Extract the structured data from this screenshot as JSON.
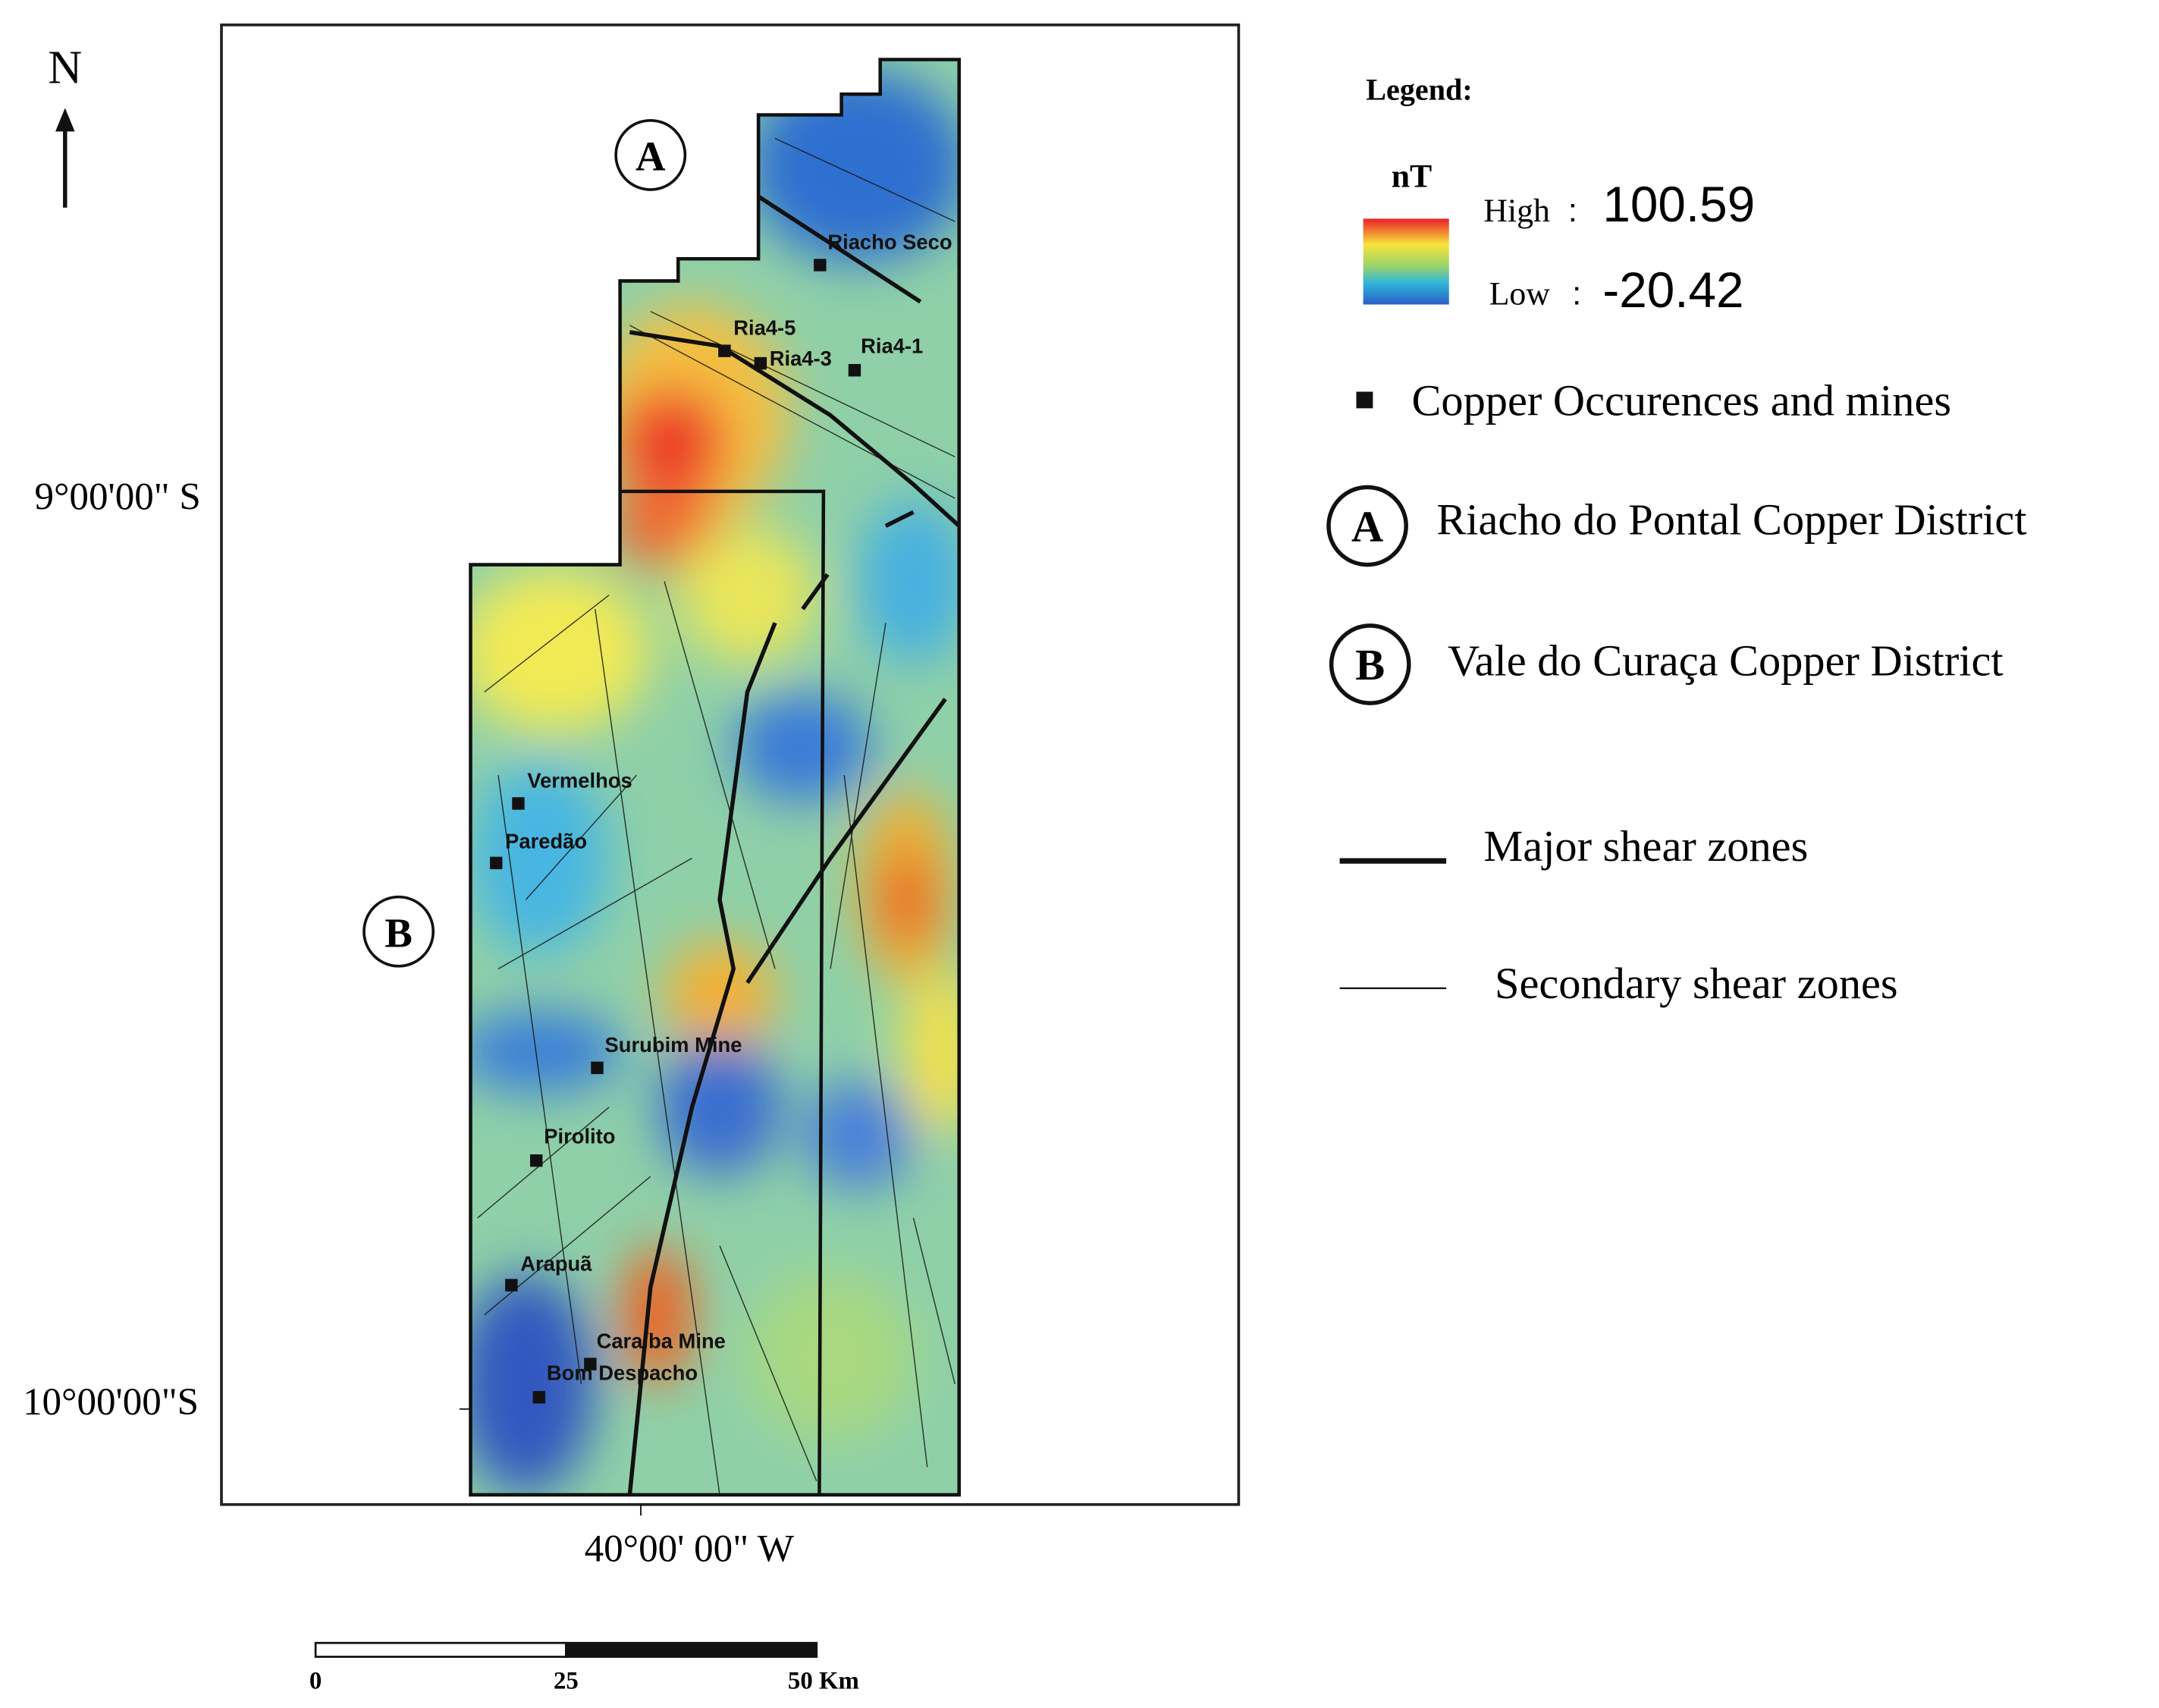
{
  "north": "N",
  "latitudes": [
    "9°00'00\" S",
    "10°00'00\"S"
  ],
  "longitude": "40°00' 00\" W",
  "map_labels": [
    "A",
    "B"
  ],
  "mines": [
    "Riacho Seco",
    "Ria4-5",
    "Ria4-3",
    "Ria4-1",
    "Vermelhos",
    "Paredão",
    "Surubim Mine",
    "Pirolito",
    "Arapuã",
    "Caraíba Mine",
    "Bom Despacho"
  ],
  "legend": {
    "title": "Legend:",
    "unit": "nT",
    "high_label": "High",
    "high_value": 100.59,
    "low_label": "Low",
    "low_value": -20.42,
    "items": [
      {
        "symbol": "",
        "label": "Copper Occurences  and mines"
      },
      {
        "symbol": "A",
        "label": "Riacho do Pontal Copper District"
      },
      {
        "symbol": "B",
        "label": "Vale do Curaça Copper  District"
      },
      {
        "symbol": "",
        "label": "Major shear zones"
      },
      {
        "symbol": "",
        "label": "Secondary shear zones"
      }
    ]
  },
  "scale_bar": [
    "0",
    "25",
    "50 Km"
  ]
}
